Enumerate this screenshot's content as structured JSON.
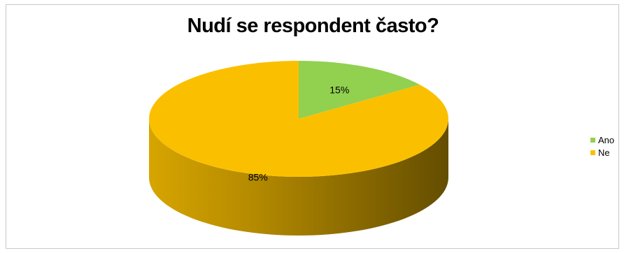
{
  "chart_data": {
    "type": "pie",
    "title": "Nudí se respondent často?",
    "categories": [
      "Ano",
      "Ne"
    ],
    "values": [
      15,
      85
    ],
    "labels": [
      "15%",
      "85%"
    ],
    "colors": [
      "#92d050",
      "#fac000"
    ],
    "legend_position": "right",
    "style": "3d"
  }
}
